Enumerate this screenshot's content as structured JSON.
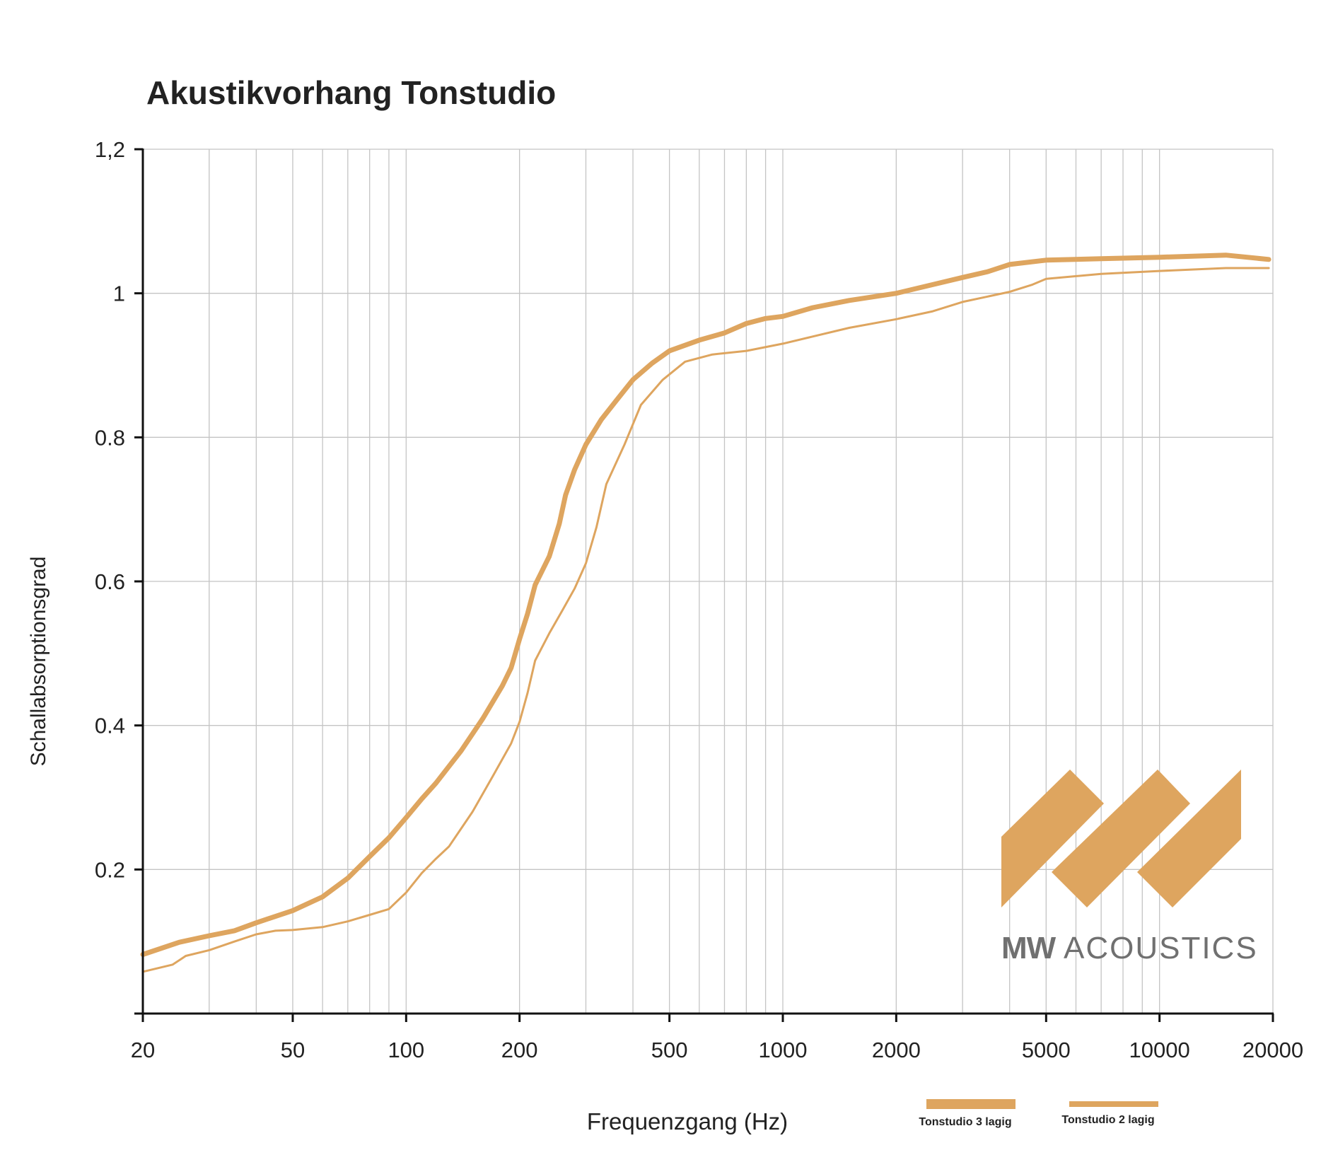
{
  "title": "Akustikvorhang Tonstudio",
  "brand": {
    "bold": "MW",
    "text": "ACOUSTICS",
    "color": "#DEA55F"
  },
  "legend": [
    {
      "label": "Tonstudio 3 lagig"
    },
    {
      "label": "Tonstudio 2 lagig"
    }
  ],
  "chart_data": {
    "type": "line",
    "title": "Akustikvorhang Tonstudio",
    "xlabel": "Frequenzgang (Hz)",
    "ylabel": "Schallabsorptionsgrad",
    "xscale": "log",
    "xlim": [
      20,
      20000
    ],
    "ylim": [
      0,
      1.2
    ],
    "xticks": [
      20,
      50,
      100,
      200,
      500,
      1000,
      2000,
      5000,
      10000,
      20000
    ],
    "xtick_labels": [
      "20",
      "50",
      "100",
      "200",
      "500",
      "1000",
      "2000",
      "5000",
      "10000",
      "20000"
    ],
    "yticks": [
      0.2,
      0.4,
      0.6,
      0.8,
      1,
      1.2
    ],
    "ytick_labels": [
      "0.2",
      "0.4",
      "0.6",
      "0.8",
      "1",
      "1,2"
    ],
    "grid": true,
    "legend_position": "bottom-right",
    "series": [
      {
        "name": "Tonstudio 3 lagig",
        "color": "#DEA55F",
        "weight": "thick",
        "points": [
          [
            20,
            0.082
          ],
          [
            25,
            0.099
          ],
          [
            30,
            0.108
          ],
          [
            35,
            0.115
          ],
          [
            40,
            0.126
          ],
          [
            50,
            0.143
          ],
          [
            60,
            0.162
          ],
          [
            70,
            0.188
          ],
          [
            80,
            0.218
          ],
          [
            90,
            0.244
          ],
          [
            100,
            0.272
          ],
          [
            110,
            0.298
          ],
          [
            120,
            0.32
          ],
          [
            140,
            0.365
          ],
          [
            160,
            0.41
          ],
          [
            180,
            0.455
          ],
          [
            190,
            0.48
          ],
          [
            200,
            0.52
          ],
          [
            210,
            0.555
          ],
          [
            220,
            0.595
          ],
          [
            240,
            0.635
          ],
          [
            255,
            0.68
          ],
          [
            265,
            0.72
          ],
          [
            280,
            0.755
          ],
          [
            300,
            0.79
          ],
          [
            330,
            0.825
          ],
          [
            360,
            0.85
          ],
          [
            400,
            0.88
          ],
          [
            450,
            0.903
          ],
          [
            500,
            0.92
          ],
          [
            600,
            0.935
          ],
          [
            700,
            0.945
          ],
          [
            800,
            0.958
          ],
          [
            900,
            0.965
          ],
          [
            1000,
            0.968
          ],
          [
            1200,
            0.98
          ],
          [
            1500,
            0.99
          ],
          [
            2000,
            1.0
          ],
          [
            2500,
            1.012
          ],
          [
            3000,
            1.022
          ],
          [
            3500,
            1.03
          ],
          [
            4000,
            1.04
          ],
          [
            5000,
            1.046
          ],
          [
            7000,
            1.048
          ],
          [
            10000,
            1.05
          ],
          [
            15000,
            1.053
          ],
          [
            19500,
            1.047
          ]
        ]
      },
      {
        "name": "Tonstudio 2 lagig",
        "color": "#DEA55F",
        "weight": "thin",
        "points": [
          [
            20,
            0.058
          ],
          [
            24,
            0.068
          ],
          [
            26,
            0.08
          ],
          [
            30,
            0.088
          ],
          [
            35,
            0.1
          ],
          [
            40,
            0.11
          ],
          [
            45,
            0.115
          ],
          [
            50,
            0.116
          ],
          [
            60,
            0.12
          ],
          [
            70,
            0.128
          ],
          [
            80,
            0.137
          ],
          [
            90,
            0.145
          ],
          [
            100,
            0.168
          ],
          [
            110,
            0.195
          ],
          [
            120,
            0.215
          ],
          [
            130,
            0.232
          ],
          [
            150,
            0.28
          ],
          [
            170,
            0.33
          ],
          [
            190,
            0.375
          ],
          [
            200,
            0.405
          ],
          [
            210,
            0.445
          ],
          [
            220,
            0.49
          ],
          [
            240,
            0.528
          ],
          [
            260,
            0.56
          ],
          [
            280,
            0.59
          ],
          [
            300,
            0.625
          ],
          [
            320,
            0.675
          ],
          [
            340,
            0.735
          ],
          [
            380,
            0.79
          ],
          [
            420,
            0.845
          ],
          [
            480,
            0.88
          ],
          [
            550,
            0.905
          ],
          [
            650,
            0.915
          ],
          [
            800,
            0.92
          ],
          [
            1000,
            0.93
          ],
          [
            1200,
            0.94
          ],
          [
            1500,
            0.952
          ],
          [
            2000,
            0.964
          ],
          [
            2500,
            0.975
          ],
          [
            3000,
            0.988
          ],
          [
            4000,
            1.002
          ],
          [
            4600,
            1.012
          ],
          [
            5000,
            1.02
          ],
          [
            7000,
            1.027
          ],
          [
            10000,
            1.031
          ],
          [
            15000,
            1.035
          ],
          [
            19500,
            1.035
          ]
        ]
      }
    ]
  }
}
